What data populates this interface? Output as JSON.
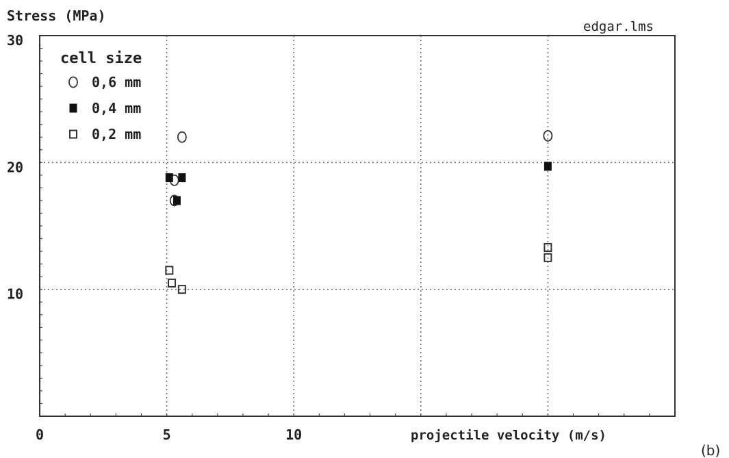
{
  "chart_data": {
    "type": "scatter",
    "ylabel": "Stress (MPa)",
    "xlabel": "projectile velocity (m/s)",
    "file_label": "edgar.lms",
    "panel_label": "(b)",
    "xlim": [
      0,
      25
    ],
    "ylim": [
      0,
      30
    ],
    "x_ticks": [
      0,
      5,
      10
    ],
    "y_ticks": [
      10,
      20,
      30
    ],
    "grid": true,
    "legend": {
      "title": "cell size",
      "placement": "top-left",
      "entries": [
        {
          "label": "0,6 mm",
          "marker": "open-circle"
        },
        {
          "label": "0,4 mm",
          "marker": "filled-square"
        },
        {
          "label": "0,2 mm",
          "marker": "open-square"
        }
      ]
    },
    "series": [
      {
        "name": "0,6 mm",
        "marker": "open-circle",
        "points": [
          [
            5.6,
            22.0
          ],
          [
            5.3,
            18.6
          ],
          [
            5.3,
            17.0
          ],
          [
            20.0,
            22.1
          ]
        ]
      },
      {
        "name": "0,4 mm",
        "marker": "filled-square",
        "points": [
          [
            5.1,
            18.8
          ],
          [
            5.6,
            18.8
          ],
          [
            5.4,
            17.0
          ],
          [
            20.0,
            19.7
          ]
        ]
      },
      {
        "name": "0,2 mm",
        "marker": "open-square",
        "points": [
          [
            5.1,
            11.5
          ],
          [
            5.2,
            10.5
          ],
          [
            5.6,
            10.0
          ],
          [
            20.0,
            13.3
          ],
          [
            20.0,
            12.5
          ]
        ]
      }
    ]
  }
}
